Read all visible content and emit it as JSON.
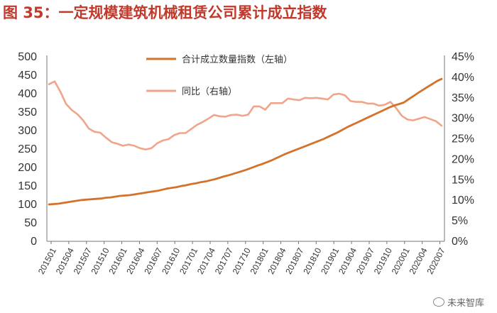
{
  "title": "图 35：一定规模建筑机械租赁公司累计成立指数",
  "watermark": "未来智库",
  "chart_data": {
    "type": "line",
    "title": "图 35：一定规模建筑机械租赁公司累计成立指数",
    "xlabel": "",
    "ylabel_left": "",
    "ylabel_right": "",
    "ylim_left": [
      0,
      500
    ],
    "ylim_right": [
      0,
      45
    ],
    "yticks_left": [
      "0",
      "50",
      "100",
      "150",
      "200",
      "250",
      "300",
      "350",
      "400",
      "450",
      "500"
    ],
    "yticks_right": [
      "0%",
      "5%",
      "10%",
      "15%",
      "20%",
      "25%",
      "30%",
      "35%",
      "40%",
      "45%"
    ],
    "xticks": [
      "201501",
      "201504",
      "201507",
      "201510",
      "201601",
      "201604",
      "201607",
      "201610",
      "201701",
      "201704",
      "201707",
      "201710",
      "201801",
      "201804",
      "201807",
      "201810",
      "201901",
      "201904",
      "201907",
      "201910",
      "202001",
      "202004",
      "202007"
    ],
    "legend_position": "top-center",
    "colors": {
      "series1": "#d4722b",
      "series2": "#f0a58a"
    },
    "series": [
      {
        "name": "合计成立数量指数（左轴）",
        "axis": "left",
        "values": [
          100,
          101,
          102,
          104,
          106,
          108,
          110,
          112,
          113,
          114,
          115,
          116,
          118,
          119,
          121,
          123,
          124,
          125,
          127,
          129,
          131,
          133,
          135,
          137,
          140,
          143,
          145,
          147,
          150,
          152,
          155,
          157,
          160,
          162,
          165,
          168,
          172,
          176,
          179,
          183,
          187,
          191,
          195,
          200,
          205,
          209,
          214,
          219,
          225,
          231,
          237,
          242,
          247,
          252,
          257,
          262,
          267,
          272,
          277,
          283,
          289,
          295,
          302,
          309,
          315,
          321,
          327,
          333,
          339,
          345,
          351,
          357,
          363,
          368,
          372,
          376,
          385,
          393,
          402,
          410,
          418,
          426,
          434,
          440
        ]
      },
      {
        "name": "同比（右轴）",
        "axis": "right",
        "values": [
          38.3,
          39.0,
          36.5,
          33.5,
          32.0,
          31.0,
          29.5,
          27.5,
          26.7,
          26.5,
          25.3,
          24.2,
          23.8,
          23.3,
          23.6,
          23.3,
          22.7,
          22.4,
          22.7,
          23.9,
          24.6,
          24.9,
          25.9,
          26.4,
          26.4,
          27.4,
          28.4,
          29.1,
          29.9,
          30.8,
          30.5,
          30.4,
          30.8,
          30.9,
          30.6,
          30.9,
          32.9,
          32.9,
          32.1,
          33.7,
          33.7,
          33.7,
          34.8,
          34.6,
          34.4,
          35.0,
          34.9,
          35.0,
          34.8,
          34.6,
          35.8,
          36.0,
          35.6,
          34.2,
          34.0,
          34.0,
          33.6,
          33.6,
          33.1,
          33.3,
          34.0,
          32.5,
          30.6,
          29.7,
          29.5,
          29.9,
          30.3,
          29.8,
          29.3,
          28.2
        ]
      }
    ]
  }
}
